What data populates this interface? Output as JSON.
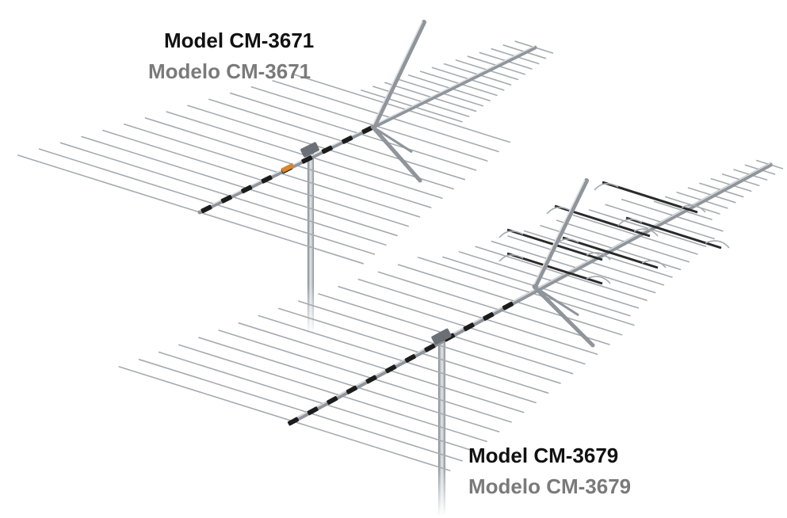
{
  "antenna_a": {
    "model_en": "Model CM-3671",
    "model_es": "Modelo CM-3671"
  },
  "antenna_b": {
    "model_en": "Model CM-3679",
    "model_es": "Modelo CM-3679"
  },
  "colors": {
    "text_primary": "#111111",
    "text_secondary": "#7a7a7a",
    "metal": "#9aa0a6",
    "metal_dark": "#5f656b",
    "insulator": "#1a1a1a",
    "accent": "#d9862b"
  }
}
